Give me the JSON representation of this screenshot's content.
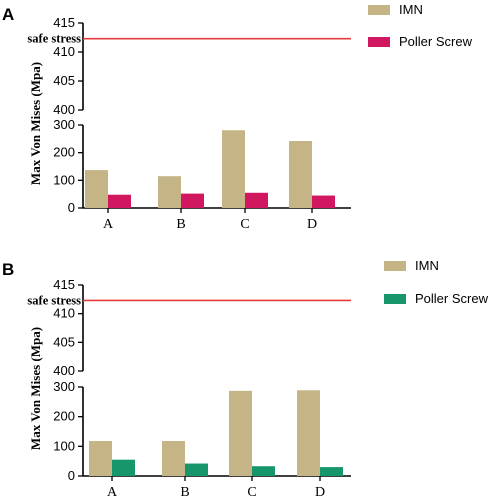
{
  "chart_data": [
    {
      "panel_label": "A",
      "type": "bar",
      "categories": [
        "A",
        "B",
        "C",
        "D"
      ],
      "series": [
        {
          "name": "IMN",
          "color": "#c4b486",
          "values": [
            137,
            115,
            281,
            242
          ]
        },
        {
          "name": "Poller Screw",
          "color": "#d0175f",
          "values": [
            48,
            52,
            55,
            45
          ]
        }
      ],
      "ylabel": "Max Von Mises (Mpa)",
      "broken_axis": {
        "lower": {
          "ylim": [
            0,
            300
          ],
          "ticks": [
            "0",
            "100",
            "200",
            "300"
          ]
        },
        "upper": {
          "ylim": [
            400,
            415
          ],
          "ticks": [
            "400",
            "405",
            "410",
            "415"
          ]
        }
      },
      "reference_line": {
        "label": "safe stress",
        "value": 412.3,
        "color": "#e63a3a"
      }
    },
    {
      "panel_label": "B",
      "type": "bar",
      "categories": [
        "A",
        "B",
        "C",
        "D"
      ],
      "series": [
        {
          "name": "IMN",
          "color": "#c4b486",
          "values": [
            118,
            118,
            287,
            289
          ]
        },
        {
          "name": "Poller Screw",
          "color": "#16966a",
          "values": [
            55,
            42,
            33,
            30
          ]
        }
      ],
      "ylabel": "Max Von Mises (Mpa)",
      "broken_axis": {
        "lower": {
          "ylim": [
            0,
            300
          ],
          "ticks": [
            "0",
            "100",
            "200",
            "300"
          ]
        },
        "upper": {
          "ylim": [
            400,
            415
          ],
          "ticks": [
            "400",
            "405",
            "410",
            "415"
          ]
        }
      },
      "reference_line": {
        "label": "safe stress",
        "value": 412.3,
        "color": "#e63a3a"
      }
    }
  ]
}
